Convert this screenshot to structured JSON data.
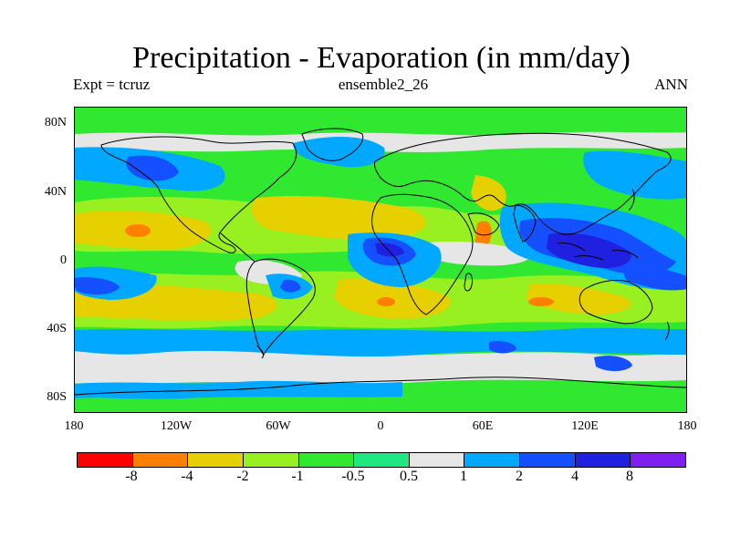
{
  "title": "Precipitation - Evaporation (in mm/day)",
  "left_label": "Expt = tcruz",
  "center_label": "ensemble2_26",
  "right_label": "ANN",
  "lat_labels": [
    "80N",
    "40N",
    "0",
    "40S",
    "80S"
  ],
  "lon_labels": [
    "180",
    "120W",
    "60W",
    "0",
    "60E",
    "120E",
    "180"
  ],
  "colorbar_labels": [
    "-8",
    "-4",
    "-2",
    "-1",
    "-0.5",
    "0.5",
    "1",
    "2",
    "4",
    "8"
  ],
  "colors": {
    "c1": "#ff0000",
    "c2": "#ff8000",
    "c3": "#e6d000",
    "c4": "#98f020",
    "c5": "#30e830",
    "c6": "#20e880",
    "c7": "#e6e6e6",
    "c8": "#00a8ff",
    "c9": "#1450ff",
    "c10": "#2020e0",
    "c11": "#8020f0"
  },
  "chart_data": {
    "type": "heatmap",
    "title": "Precipitation - Evaporation (in mm/day)",
    "xlabel": "",
    "ylabel": "",
    "xlim": [
      -180,
      180
    ],
    "ylim": [
      -90,
      90
    ],
    "levels": [
      -8,
      -4,
      -2,
      -1,
      -0.5,
      0.5,
      1,
      2,
      4,
      8
    ]
  }
}
